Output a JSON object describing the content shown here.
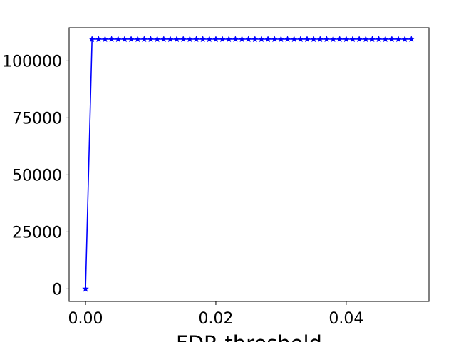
{
  "chart_data": {
    "type": "line",
    "title": "",
    "xlabel": "FDR threshold",
    "ylabel": "",
    "xlim": [
      -0.00252,
      0.0527
    ],
    "ylim": [
      -5500,
      114500
    ],
    "x_ticks": [
      0.0,
      0.02,
      0.04
    ],
    "x_tick_labels": [
      "0.00",
      "0.02",
      "0.04"
    ],
    "y_ticks": [
      0,
      25000,
      50000,
      75000,
      100000
    ],
    "y_tick_labels": [
      "0",
      "25000",
      "50000",
      "75000",
      "100000"
    ],
    "grid": false,
    "legend": "none",
    "series": [
      {
        "color": "#0000ff",
        "marker": "star",
        "x": [
          0.0,
          0.001,
          0.002,
          0.003,
          0.004,
          0.005,
          0.006,
          0.007,
          0.008,
          0.009,
          0.01,
          0.011,
          0.012,
          0.013,
          0.014,
          0.015,
          0.016,
          0.017,
          0.018,
          0.019,
          0.02,
          0.021,
          0.022,
          0.023,
          0.024,
          0.025,
          0.026,
          0.027,
          0.028,
          0.029,
          0.03,
          0.031,
          0.032,
          0.033,
          0.034,
          0.035,
          0.036,
          0.037,
          0.038,
          0.039,
          0.04,
          0.041,
          0.042,
          0.043,
          0.044,
          0.045,
          0.046,
          0.047,
          0.048,
          0.049,
          0.05
        ],
        "y": [
          0,
          109500,
          109500,
          109500,
          109500,
          109500,
          109500,
          109500,
          109500,
          109500,
          109500,
          109500,
          109500,
          109500,
          109500,
          109500,
          109500,
          109500,
          109500,
          109500,
          109500,
          109500,
          109500,
          109500,
          109500,
          109500,
          109500,
          109500,
          109500,
          109500,
          109500,
          109500,
          109500,
          109500,
          109500,
          109500,
          109500,
          109500,
          109500,
          109500,
          109500,
          109500,
          109500,
          109500,
          109500,
          109500,
          109500,
          109500,
          109500,
          109500,
          109500
        ]
      }
    ]
  }
}
